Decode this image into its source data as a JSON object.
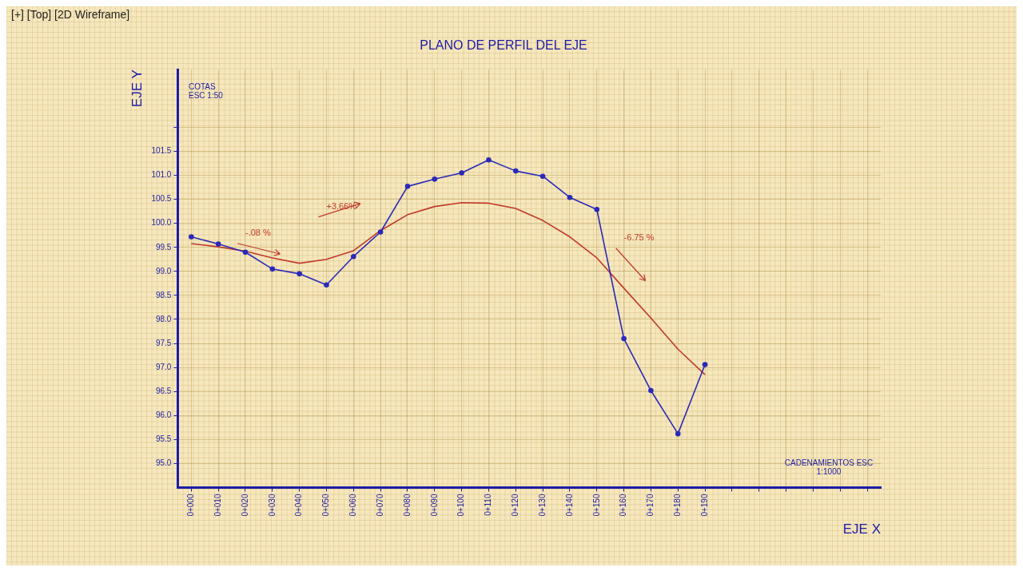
{
  "chart_data": {
    "type": "line",
    "title": "PLANO DE PERFIL DEL EJE",
    "xlabel": "EJE X",
    "ylabel": "EJE Y",
    "categories": [
      "0+000",
      "0+010",
      "0+020",
      "0+030",
      "0+040",
      "0+050",
      "0+060",
      "0+070",
      "0+080",
      "0+090",
      "0+100",
      "0+110",
      "0+120",
      "0+130",
      "0+140",
      "0+150",
      "0+160",
      "0+170",
      "0+180",
      "0+190",
      null,
      null,
      null,
      null,
      null,
      null
    ],
    "series": [
      {
        "color": "#2a2ab8",
        "marker": "circle",
        "values": [
          99.72,
          99.57,
          99.4,
          99.05,
          98.95,
          98.72,
          99.31,
          99.82,
          100.77,
          100.92,
          101.05,
          101.32,
          101.09,
          100.98,
          100.54,
          100.29,
          97.6,
          96.52,
          95.62,
          97.06,
          null,
          null,
          null,
          null,
          null,
          null
        ]
      },
      {
        "color": "#c0392b",
        "marker": "none",
        "values": [
          99.58,
          99.51,
          99.42,
          99.28,
          99.17,
          99.25,
          99.43,
          99.85,
          100.18,
          100.35,
          100.43,
          100.42,
          100.31,
          100.06,
          99.72,
          99.28,
          98.65,
          98.03,
          97.38,
          96.85,
          null,
          null,
          null,
          null,
          null,
          null
        ]
      }
    ],
    "ylim": [
      94.5,
      103.2
    ],
    "yticks": [
      {
        "value": 95,
        "label": "95.0"
      },
      {
        "value": 95.5,
        "label": "95.5"
      },
      {
        "value": 96,
        "label": "96.0"
      },
      {
        "value": 96.5,
        "label": "96.5"
      },
      {
        "value": 97,
        "label": "97.0"
      },
      {
        "value": 97.5,
        "label": "97.5"
      },
      {
        "value": 98,
        "label": "98.0"
      },
      {
        "value": 98.5,
        "label": "98.5"
      },
      {
        "value": 99,
        "label": "99.0"
      },
      {
        "value": 99.5,
        "label": "99.5"
      },
      {
        "value": 100,
        "label": "100.0"
      },
      {
        "value": 100.5,
        "label": "100.5"
      },
      {
        "value": 101,
        "label": "101.0"
      },
      {
        "value": 101.5,
        "label": "101.5"
      },
      {
        "value": 102,
        "label": null
      }
    ],
    "grid": true,
    "legend": false,
    "line_style": "solid",
    "annotations": [
      "-.08 %",
      "+3.66%",
      "-6.75 %",
      "[+] [Top] [2D Wireframe]",
      "COTAS ESC 1:50",
      "CADENAMIENTOS ESC 1:1000"
    ]
  }
}
